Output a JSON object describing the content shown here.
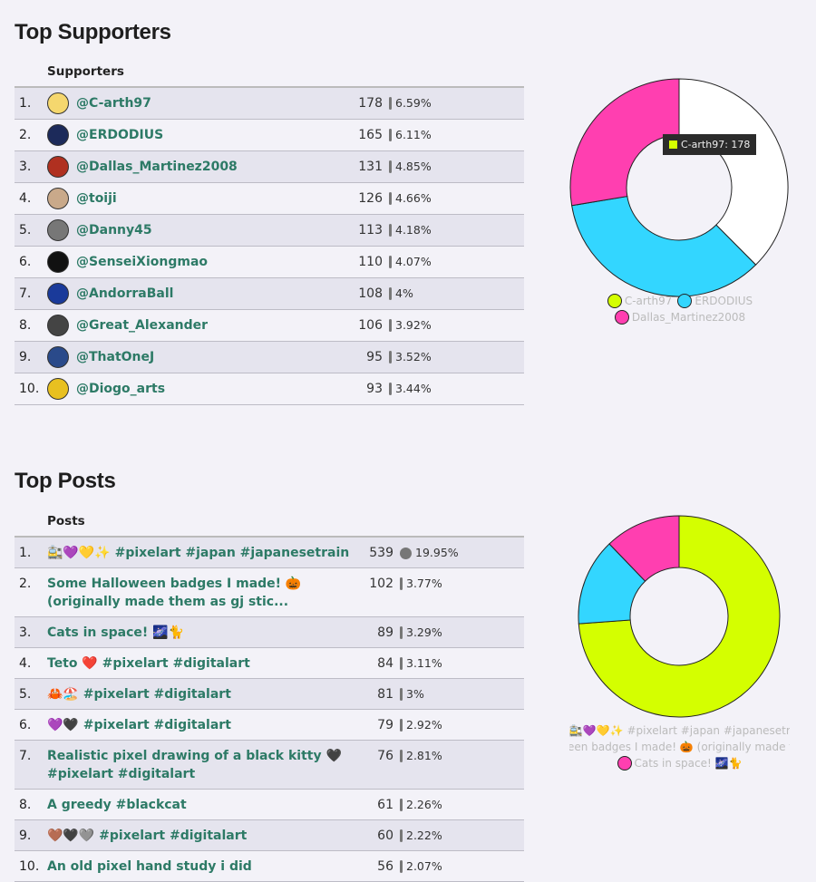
{
  "supporters": {
    "title": "Top Supporters",
    "column": "Supporters",
    "rows": [
      {
        "rank": "1.",
        "name": "@C-arth97",
        "count": 178,
        "percent": "6.59%"
      },
      {
        "rank": "2.",
        "name": "@ERDODIUS",
        "count": 165,
        "percent": "6.11%"
      },
      {
        "rank": "3.",
        "name": "@Dallas_Martinez2008",
        "count": 131,
        "percent": "4.85%"
      },
      {
        "rank": "4.",
        "name": "@toiji",
        "count": 126,
        "percent": "4.66%"
      },
      {
        "rank": "5.",
        "name": "@Danny45",
        "count": 113,
        "percent": "4.18%"
      },
      {
        "rank": "6.",
        "name": "@SenseiXiongmao",
        "count": 110,
        "percent": "4.07%"
      },
      {
        "rank": "7.",
        "name": "@AndorraBall",
        "count": 108,
        "percent": "4%"
      },
      {
        "rank": "8.",
        "name": "@Great_Alexander",
        "count": 106,
        "percent": "3.92%"
      },
      {
        "rank": "9.",
        "name": "@ThatOneJ",
        "count": 95,
        "percent": "3.52%"
      },
      {
        "rank": "10.",
        "name": "@Diogo_arts",
        "count": 93,
        "percent": "3.44%"
      }
    ],
    "donut": {
      "colors": [
        "#ffffff",
        "#33d6ff",
        "#ff3fb0"
      ],
      "legend_colors": [
        "#d4ff00",
        "#33d6ff",
        "#ff3fb0"
      ],
      "legend": [
        "C-arth97",
        "ERDODIUS",
        "Dallas_Martinez2008"
      ],
      "tooltip": "C-arth97: 178",
      "tooltip_color": "#d4ff00"
    }
  },
  "posts": {
    "title": "Top Posts",
    "column": "Posts",
    "rows": [
      {
        "rank": "1.",
        "name": "🚉💜💛✨ #pixelart #japan #japanesetrain",
        "count": 539,
        "percent": "19.95%"
      },
      {
        "rank": "2.",
        "name": "Some Halloween badges I made! 🎃 (originally made them as gj stic...",
        "count": 102,
        "percent": "3.77%"
      },
      {
        "rank": "3.",
        "name": "Cats in space! 🌌🐈",
        "count": 89,
        "percent": "3.29%"
      },
      {
        "rank": "4.",
        "name": "Teto ❤️ #pixelart #digitalart",
        "count": 84,
        "percent": "3.11%"
      },
      {
        "rank": "5.",
        "name": "🦀🏖️ #pixelart #digitalart",
        "count": 81,
        "percent": "3%"
      },
      {
        "rank": "6.",
        "name": "💜🖤 #pixelart #digitalart",
        "count": 79,
        "percent": "2.92%"
      },
      {
        "rank": "7.",
        "name": "Realistic pixel drawing of a black kitty 🖤 #pixelart #digitalart",
        "count": 76,
        "percent": "2.81%"
      },
      {
        "rank": "8.",
        "name": "A greedy #blackcat",
        "count": 61,
        "percent": "2.26%"
      },
      {
        "rank": "9.",
        "name": "🤎🖤🩶 #pixelart #digitalart",
        "count": 60,
        "percent": "2.22%"
      },
      {
        "rank": "10.",
        "name": "An old pixel hand study i did",
        "count": 56,
        "percent": "2.07%"
      }
    ],
    "donut": {
      "colors": [
        "#d4ff00",
        "#33d6ff",
        "#ff3fb0"
      ],
      "legend_colors": [
        "#d4ff00",
        "#33d6ff",
        "#ff3fb0"
      ],
      "legend": [
        "🚉💜💛✨ #pixelart #japan #japanesetrain",
        "Some Halloween badges I made! 🎃 (originally made them as gj stic...",
        "Cats in space! 🌌🐈"
      ]
    }
  }
}
